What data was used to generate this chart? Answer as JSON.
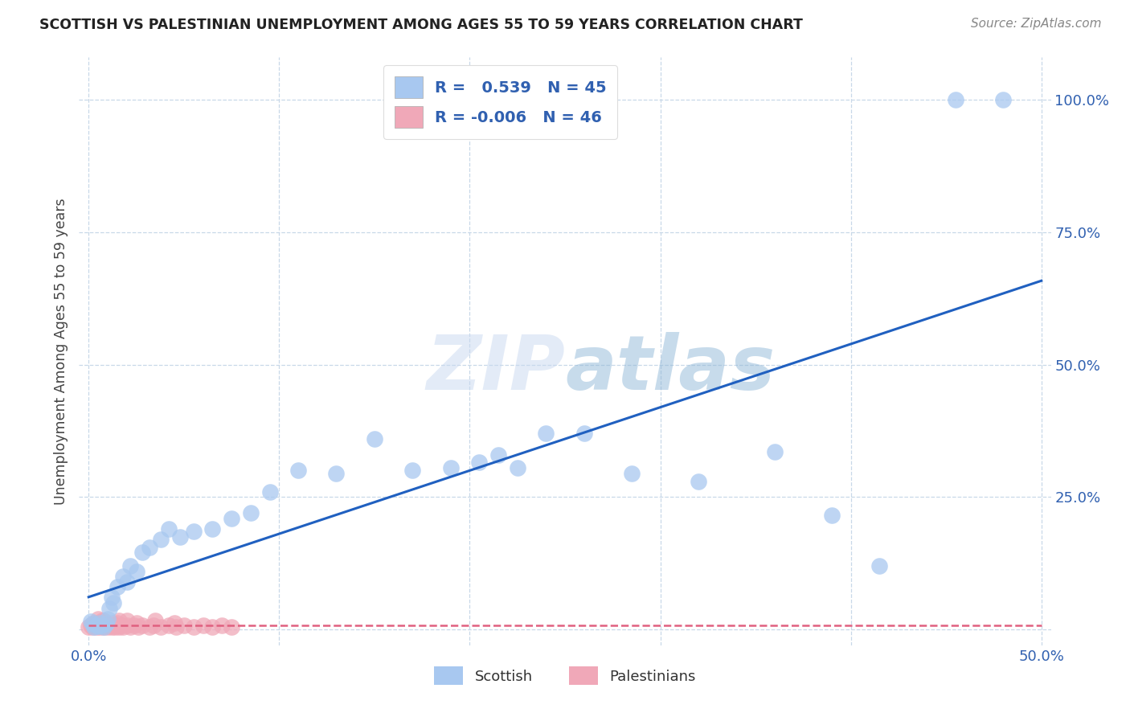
{
  "title": "SCOTTISH VS PALESTINIAN UNEMPLOYMENT AMONG AGES 55 TO 59 YEARS CORRELATION CHART",
  "source": "Source: ZipAtlas.com",
  "ylabel": "Unemployment Among Ages 55 to 59 years",
  "xlim": [
    -0.005,
    0.505
  ],
  "ylim": [
    -0.03,
    1.08
  ],
  "background_color": "#ffffff",
  "grid_color": "#c8d8e8",
  "scottish_color": "#a8c8f0",
  "palestinian_color": "#f0a8b8",
  "scottish_line_color": "#2060c0",
  "palestinian_line_color": "#e06080",
  "R_scottish": 0.539,
  "N_scottish": 45,
  "R_palestinian": -0.006,
  "N_palestinian": 46,
  "scottish_x": [
    0.001,
    0.002,
    0.003,
    0.004,
    0.005,
    0.006,
    0.007,
    0.008,
    0.009,
    0.01,
    0.011,
    0.012,
    0.013,
    0.015,
    0.018,
    0.02,
    0.022,
    0.025,
    0.028,
    0.032,
    0.038,
    0.042,
    0.048,
    0.055,
    0.065,
    0.075,
    0.085,
    0.095,
    0.11,
    0.13,
    0.15,
    0.17,
    0.19,
    0.205,
    0.215,
    0.225,
    0.24,
    0.26,
    0.285,
    0.32,
    0.36,
    0.39,
    0.415,
    0.455,
    0.48
  ],
  "scottish_y": [
    0.015,
    0.01,
    0.005,
    0.008,
    0.006,
    0.012,
    0.008,
    0.004,
    0.01,
    0.02,
    0.04,
    0.06,
    0.05,
    0.08,
    0.1,
    0.09,
    0.12,
    0.11,
    0.145,
    0.155,
    0.17,
    0.19,
    0.175,
    0.185,
    0.19,
    0.21,
    0.22,
    0.26,
    0.3,
    0.295,
    0.36,
    0.3,
    0.305,
    0.315,
    0.33,
    0.305,
    0.37,
    0.37,
    0.295,
    0.28,
    0.335,
    0.215,
    0.12,
    1.0,
    1.0
  ],
  "palestinian_x": [
    0.0,
    0.001,
    0.002,
    0.003,
    0.004,
    0.005,
    0.006,
    0.007,
    0.008,
    0.009,
    0.01,
    0.011,
    0.012,
    0.013,
    0.014,
    0.015,
    0.016,
    0.017,
    0.018,
    0.02,
    0.022,
    0.024,
    0.026,
    0.028,
    0.032,
    0.034,
    0.038,
    0.042,
    0.046,
    0.05,
    0.055,
    0.06,
    0.065,
    0.07,
    0.075,
    0.015,
    0.02,
    0.005,
    0.008,
    0.012,
    0.016,
    0.003,
    0.007,
    0.025,
    0.035,
    0.045
  ],
  "palestinian_y": [
    0.004,
    0.008,
    0.004,
    0.008,
    0.004,
    0.008,
    0.004,
    0.008,
    0.004,
    0.008,
    0.004,
    0.008,
    0.004,
    0.008,
    0.004,
    0.008,
    0.004,
    0.008,
    0.004,
    0.008,
    0.004,
    0.008,
    0.004,
    0.008,
    0.004,
    0.008,
    0.004,
    0.008,
    0.004,
    0.008,
    0.004,
    0.008,
    0.004,
    0.008,
    0.004,
    0.012,
    0.016,
    0.02,
    0.016,
    0.012,
    0.016,
    0.012,
    0.016,
    0.012,
    0.016,
    0.012
  ]
}
